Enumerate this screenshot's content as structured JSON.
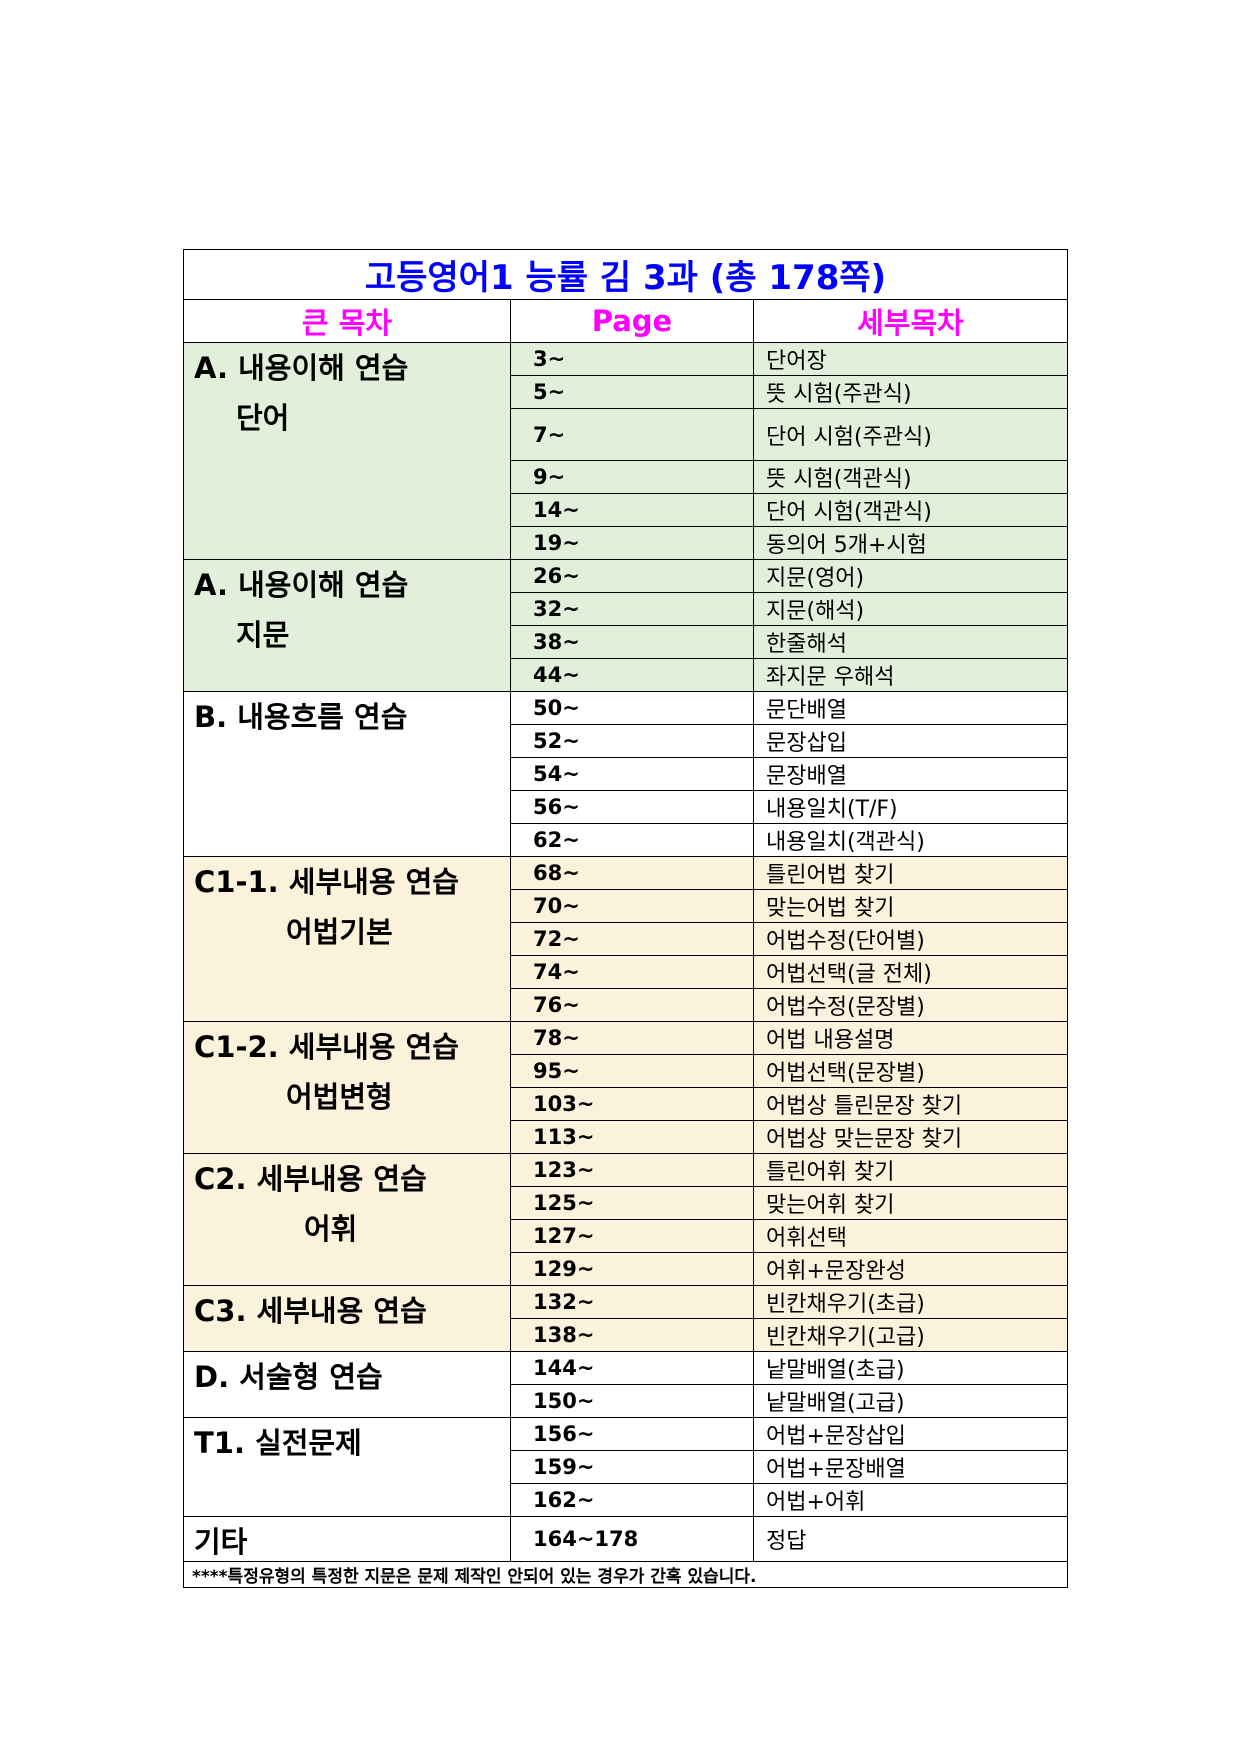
{
  "title": "고등영어1 능률 김 3과 (총 178쪽)",
  "headers": {
    "section": "큰 목차",
    "page": "Page",
    "detail": "세부목차"
  },
  "colors": {
    "title": "#0000ff",
    "header": "#ff00ff",
    "green": "#e2efda",
    "beige": "#fbf2dc",
    "white": "#ffffff"
  },
  "sections": [
    {
      "line1": "A. 내용이해 연습",
      "line2": "단어",
      "indent": 42,
      "bg": "green",
      "rows": [
        [
          "3~",
          "단어장"
        ],
        [
          "5~",
          "뜻 시험(주관식)"
        ],
        [
          "7~",
          "단어 시험(주관식)"
        ],
        [
          "9~",
          "뜻 시험(객관식)"
        ],
        [
          "14~",
          "단어 시험(객관식)"
        ],
        [
          "19~",
          "동의어 5개+시험"
        ]
      ]
    },
    {
      "line1": "A. 내용이해 연습",
      "line2": "지문",
      "indent": 42,
      "bg": "green",
      "rows": [
        [
          "26~",
          "지문(영어)"
        ],
        [
          "32~",
          "지문(해석)"
        ],
        [
          "38~",
          "한줄해석"
        ],
        [
          "44~",
          "좌지문 우해석"
        ]
      ]
    },
    {
      "line1": "B. 내용흐름 연습",
      "line2": "",
      "indent": 0,
      "bg": "white",
      "rows": [
        [
          "50~",
          "문단배열"
        ],
        [
          "52~",
          "문장삽입"
        ],
        [
          "54~",
          "문장배열"
        ],
        [
          "56~",
          "내용일치(T/F)"
        ],
        [
          "62~",
          "내용일치(객관식)"
        ]
      ]
    },
    {
      "line1": "C1-1. 세부내용 연습",
      "line2": "어법기본",
      "indent": 92,
      "bg": "beige",
      "rows": [
        [
          "68~",
          "틀린어법 찾기"
        ],
        [
          "70~",
          "맞는어법 찾기"
        ],
        [
          "72~",
          "어법수정(단어별)"
        ],
        [
          "74~",
          "어법선택(글 전체)"
        ],
        [
          "76~",
          "어법수정(문장별)"
        ]
      ]
    },
    {
      "line1": "C1-2. 세부내용 연습",
      "line2": "어법변형",
      "indent": 92,
      "bg": "beige",
      "rows": [
        [
          "78~",
          "어법 내용설명"
        ],
        [
          "95~",
          "어법선택(문장별)"
        ],
        [
          "103~",
          "어법상 틀린문장 찾기"
        ],
        [
          "113~",
          "어법상 맞는문장 찾기"
        ]
      ]
    },
    {
      "line1": "C2. 세부내용 연습",
      "line2": "어휘",
      "indent": 110,
      "bg": "beige",
      "rows": [
        [
          "123~",
          "틀린어휘 찾기"
        ],
        [
          "125~",
          "맞는어휘 찾기"
        ],
        [
          "127~",
          "어휘선택"
        ],
        [
          "129~",
          "어휘+문장완성"
        ]
      ]
    },
    {
      "line1": "C3. 세부내용 연습",
      "line2": "",
      "indent": 0,
      "bg": "beige",
      "rows": [
        [
          "132~",
          "빈칸채우기(초급)"
        ],
        [
          "138~",
          "빈칸채우기(고급)"
        ]
      ]
    },
    {
      "line1": "D. 서술형 연습",
      "line2": "",
      "indent": 0,
      "bg": "white",
      "rows": [
        [
          "144~",
          "낱말배열(초급)"
        ],
        [
          "150~",
          "낱말배열(고급)"
        ]
      ]
    },
    {
      "line1": "T1. 실전문제",
      "line2": "",
      "indent": 0,
      "bg": "white",
      "rows": [
        [
          "156~",
          "어법+문장삽입"
        ],
        [
          "159~",
          "어법+문장배열"
        ],
        [
          "162~",
          "어법+어휘"
        ]
      ]
    },
    {
      "line1": "기타",
      "line2": "",
      "indent": 0,
      "bg": "white",
      "rows": [
        [
          "164~178",
          "정답"
        ]
      ]
    }
  ],
  "footnote": "****특정유형의 특정한 지문은 문제 제작인 안되어 있는 경우가 간혹 있습니다."
}
